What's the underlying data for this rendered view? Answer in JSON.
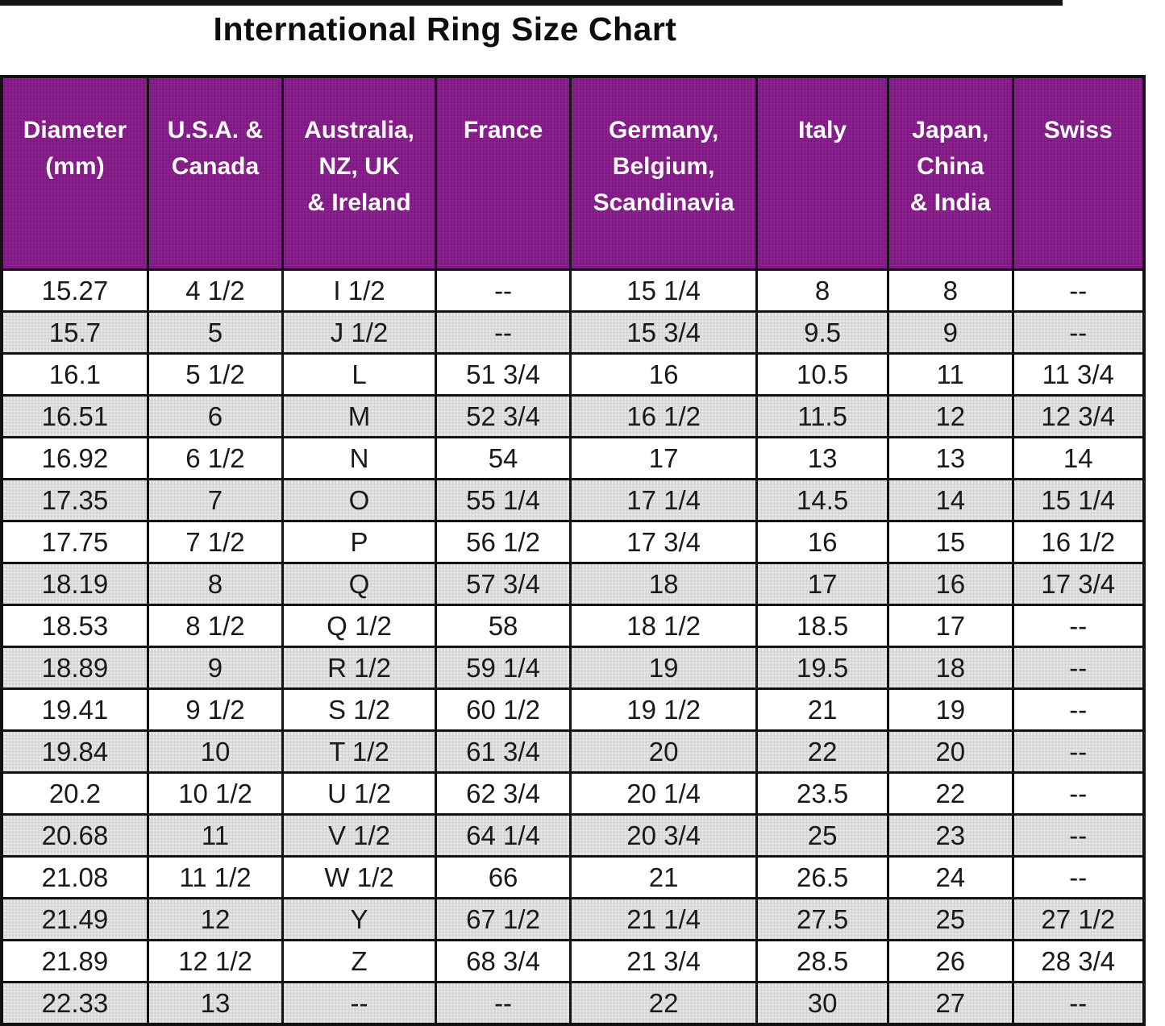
{
  "title": "International Ring Size Chart",
  "colors": {
    "header_bg": "#8a1f8e",
    "header_text": "#ffffff",
    "row_alt_bg": "#d6d6d6",
    "border": "#141414"
  },
  "chart_data": {
    "type": "table",
    "title": "International Ring Size Chart",
    "columns": [
      "Diameter (mm)",
      "U.S.A. & Canada",
      "Australia, NZ, UK & Ireland",
      "France",
      "Germany, Belgium, Scandinavia",
      "Italy",
      "Japan, China & India",
      "Swiss"
    ],
    "header_display": [
      [
        "Diameter",
        "(mm)"
      ],
      [
        "U.S.A. &",
        "Canada"
      ],
      [
        "Australia,",
        "NZ, UK",
        "& Ireland"
      ],
      [
        "France"
      ],
      [
        "Germany,",
        "Belgium,",
        "Scandinavia"
      ],
      [
        "Italy"
      ],
      [
        "Japan,",
        "China",
        "& India"
      ],
      [
        "Swiss"
      ]
    ],
    "empty_marker": "--",
    "rows": [
      [
        "15.27",
        "4 1/2",
        "I 1/2",
        "--",
        "15 1/4",
        "8",
        "8",
        "--"
      ],
      [
        "15.7",
        "5",
        "J 1/2",
        "--",
        "15 3/4",
        "9.5",
        "9",
        "--"
      ],
      [
        "16.1",
        "5 1/2",
        "L",
        "51 3/4",
        "16",
        "10.5",
        "11",
        "11 3/4"
      ],
      [
        "16.51",
        "6",
        "M",
        "52 3/4",
        "16 1/2",
        "11.5",
        "12",
        "12 3/4"
      ],
      [
        "16.92",
        "6 1/2",
        "N",
        "54",
        "17",
        "13",
        "13",
        "14"
      ],
      [
        "17.35",
        "7",
        "O",
        "55 1/4",
        "17 1/4",
        "14.5",
        "14",
        "15 1/4"
      ],
      [
        "17.75",
        "7 1/2",
        "P",
        "56 1/2",
        "17 3/4",
        "16",
        "15",
        "16 1/2"
      ],
      [
        "18.19",
        "8",
        "Q",
        "57 3/4",
        "18",
        "17",
        "16",
        "17 3/4"
      ],
      [
        "18.53",
        "8 1/2",
        "Q 1/2",
        "58",
        "18 1/2",
        "18.5",
        "17",
        "--"
      ],
      [
        "18.89",
        "9",
        "R 1/2",
        "59 1/4",
        "19",
        "19.5",
        "18",
        "--"
      ],
      [
        "19.41",
        "9 1/2",
        "S 1/2",
        "60 1/2",
        "19 1/2",
        "21",
        "19",
        "--"
      ],
      [
        "19.84",
        "10",
        "T 1/2",
        "61 3/4",
        "20",
        "22",
        "20",
        "--"
      ],
      [
        "20.2",
        "10 1/2",
        "U 1/2",
        "62 3/4",
        "20 1/4",
        "23.5",
        "22",
        "--"
      ],
      [
        "20.68",
        "11",
        "V 1/2",
        "64 1/4",
        "20 3/4",
        "25",
        "23",
        "--"
      ],
      [
        "21.08",
        "11 1/2",
        "W 1/2",
        "66",
        "21",
        "26.5",
        "24",
        "--"
      ],
      [
        "21.49",
        "12",
        "Y",
        "67 1/2",
        "21 1/4",
        "27.5",
        "25",
        "27 1/2"
      ],
      [
        "21.89",
        "12 1/2",
        "Z",
        "68 3/4",
        "21 3/4",
        "28.5",
        "26",
        "28 3/4"
      ],
      [
        "22.33",
        "13",
        "--",
        "--",
        "22",
        "30",
        "27",
        "--"
      ]
    ],
    "layout": {
      "header_position": "top",
      "row_striping": "alternating-white-gray",
      "grid": true
    }
  }
}
